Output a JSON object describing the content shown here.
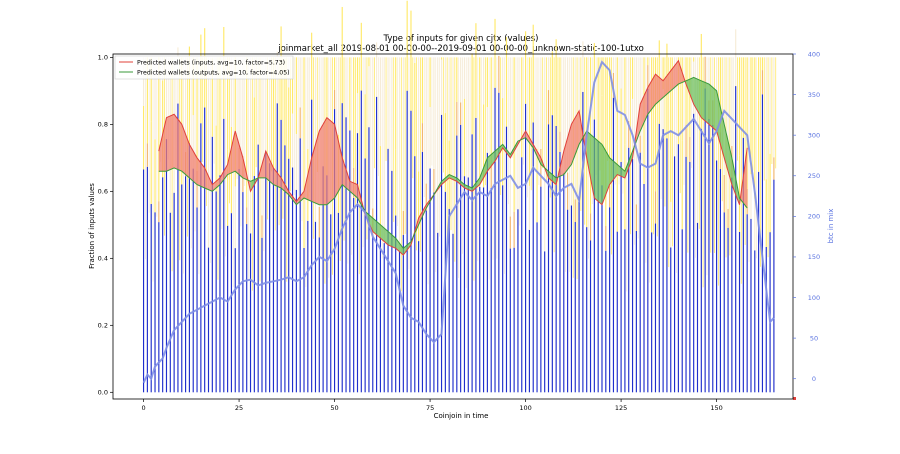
{
  "chart_data": {
    "type": "bar",
    "title": "Type of inputs for given cjtx (values)",
    "subtitle": "joinmarket_all 2019-08-01 00-00-00--2019-09-01 00-00-00_unknown-static-100-1utxo",
    "xlabel": "Coinjoin in time",
    "ylabel": "Fraction of inputs values",
    "y2label": "btc in mix",
    "xlim": [
      -8,
      170
    ],
    "ylim": [
      -0.02,
      1.01
    ],
    "y2lim": [
      -25,
      400
    ],
    "xticks": [
      "0",
      "25",
      "50",
      "75",
      "100",
      "125",
      "150"
    ],
    "xtick_values": [
      0,
      25,
      50,
      75,
      100,
      125,
      150
    ],
    "yticks": [
      "0.0",
      "0.2",
      "0.4",
      "0.6",
      "0.8",
      "1.0"
    ],
    "ytick_values": [
      0.0,
      0.2,
      0.4,
      0.6,
      0.8,
      1.0
    ],
    "y2ticks": [
      "0",
      "50",
      "100",
      "150",
      "200",
      "250",
      "300",
      "350",
      "400"
    ],
    "y2tick_values": [
      0,
      50,
      100,
      150,
      200,
      250,
      300,
      350,
      400
    ],
    "legend_position": "top-left",
    "colors": {
      "fresh_bar": "#1f2ecc",
      "yellow_bar": "#ffe96a",
      "pale_bar": "#f6ecd8",
      "orange_bar": "#f2b66e",
      "inputs_line": "#e0403a",
      "inputs_fill": "#f08070",
      "outputs_line": "#3a9a3a",
      "outputs_fill": "#6cbf5c",
      "btc_line": "#7f8fe6",
      "axis_right": "#5a73e0"
    },
    "series": [
      {
        "name": "Predicted wallets (inputs, avg=10, factor=5.73)",
        "x": [
          4,
          6,
          8,
          10,
          12,
          14,
          16,
          18,
          20,
          22,
          24,
          26,
          28,
          30,
          32,
          34,
          36,
          38,
          40,
          42,
          44,
          46,
          48,
          50,
          52,
          54,
          56,
          58,
          60,
          62,
          64,
          66,
          68,
          70,
          72,
          74,
          76,
          78,
          80,
          82,
          84,
          86,
          88,
          90,
          92,
          94,
          96,
          98,
          100,
          102,
          104,
          106,
          108,
          110,
          112,
          114,
          116,
          118,
          120,
          122,
          124,
          126,
          128,
          130,
          132,
          134,
          136,
          138,
          140,
          142,
          144,
          146,
          148,
          150,
          152,
          154,
          156,
          158
        ],
        "values": [
          0.72,
          0.82,
          0.83,
          0.8,
          0.74,
          0.7,
          0.67,
          0.62,
          0.64,
          0.68,
          0.78,
          0.7,
          0.6,
          0.64,
          0.72,
          0.67,
          0.64,
          0.6,
          0.57,
          0.6,
          0.7,
          0.78,
          0.82,
          0.8,
          0.7,
          0.63,
          0.62,
          0.53,
          0.48,
          0.46,
          0.44,
          0.43,
          0.41,
          0.44,
          0.52,
          0.56,
          0.59,
          0.62,
          0.64,
          0.63,
          0.61,
          0.6,
          0.62,
          0.66,
          0.69,
          0.73,
          0.7,
          0.74,
          0.78,
          0.74,
          0.7,
          0.64,
          0.62,
          0.72,
          0.8,
          0.84,
          0.7,
          0.58,
          0.56,
          0.62,
          0.65,
          0.64,
          0.7,
          0.86,
          0.91,
          0.95,
          0.93,
          0.96,
          0.99,
          0.92,
          0.86,
          0.82,
          0.8,
          0.78,
          0.7,
          0.62,
          0.56,
          0.73
        ]
      },
      {
        "name": "Predicted wallets (outputs, avg=10, factor=4.05)",
        "x": [
          4,
          6,
          8,
          10,
          12,
          14,
          16,
          18,
          20,
          22,
          24,
          26,
          28,
          30,
          32,
          34,
          36,
          38,
          40,
          42,
          44,
          46,
          48,
          50,
          52,
          54,
          56,
          58,
          60,
          62,
          64,
          66,
          68,
          70,
          72,
          74,
          76,
          78,
          80,
          82,
          84,
          86,
          88,
          90,
          92,
          94,
          96,
          98,
          100,
          102,
          104,
          106,
          108,
          110,
          112,
          114,
          116,
          118,
          120,
          122,
          124,
          126,
          128,
          130,
          132,
          134,
          136,
          138,
          140,
          142,
          144,
          146,
          148,
          150,
          152,
          154,
          156,
          158
        ],
        "values": [
          0.66,
          0.66,
          0.67,
          0.66,
          0.64,
          0.62,
          0.61,
          0.6,
          0.62,
          0.65,
          0.66,
          0.64,
          0.63,
          0.64,
          0.64,
          0.62,
          0.61,
          0.59,
          0.56,
          0.58,
          0.57,
          0.56,
          0.56,
          0.58,
          0.62,
          0.6,
          0.58,
          0.54,
          0.52,
          0.5,
          0.48,
          0.46,
          0.43,
          0.45,
          0.5,
          0.55,
          0.59,
          0.63,
          0.65,
          0.64,
          0.62,
          0.61,
          0.64,
          0.7,
          0.72,
          0.74,
          0.71,
          0.75,
          0.76,
          0.73,
          0.68,
          0.66,
          0.64,
          0.65,
          0.68,
          0.74,
          0.78,
          0.76,
          0.74,
          0.7,
          0.68,
          0.66,
          0.72,
          0.78,
          0.83,
          0.86,
          0.88,
          0.9,
          0.92,
          0.93,
          0.94,
          0.93,
          0.92,
          0.9,
          0.8,
          0.7,
          0.58,
          0.55
        ]
      },
      {
        "name": "btc in mix",
        "x": [
          0,
          1,
          2,
          3,
          4,
          5,
          6,
          8,
          10,
          12,
          14,
          16,
          18,
          20,
          22,
          24,
          26,
          28,
          30,
          32,
          34,
          36,
          38,
          40,
          42,
          44,
          46,
          48,
          50,
          52,
          54,
          56,
          58,
          60,
          62,
          64,
          66,
          68,
          70,
          72,
          74,
          76,
          78,
          80,
          82,
          84,
          86,
          88,
          90,
          92,
          94,
          96,
          98,
          100,
          102,
          104,
          106,
          108,
          110,
          112,
          114,
          116,
          118,
          120,
          122,
          124,
          126,
          128,
          130,
          132,
          134,
          136,
          138,
          140,
          142,
          144,
          146,
          148,
          150,
          152,
          154,
          156,
          158,
          160,
          162,
          164,
          165
        ],
        "values": [
          -5,
          5,
          0,
          15,
          20,
          25,
          38,
          60,
          70,
          80,
          85,
          90,
          95,
          100,
          95,
          110,
          120,
          122,
          115,
          118,
          120,
          122,
          125,
          120,
          125,
          140,
          150,
          145,
          160,
          185,
          205,
          215,
          205,
          175,
          160,
          145,
          130,
          90,
          75,
          70,
          55,
          45,
          55,
          200,
          215,
          230,
          220,
          230,
          225,
          240,
          245,
          250,
          235,
          240,
          260,
          250,
          240,
          225,
          235,
          240,
          220,
          300,
          365,
          390,
          380,
          330,
          325,
          300,
          265,
          260,
          265,
          300,
          305,
          300,
          310,
          320,
          305,
          290,
          305,
          330,
          320,
          310,
          300,
          230,
          150,
          70,
          75
        ]
      }
    ],
    "bar_x_range": [
      0,
      165
    ],
    "bar_pattern_note": "dense stacked fraction bars per coinjoin"
  }
}
